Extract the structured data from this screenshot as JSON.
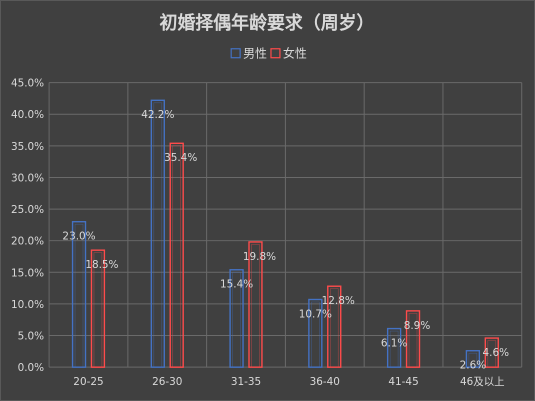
{
  "chart_data": {
    "type": "bar",
    "title": "初婚择偶年龄要求（周岁）",
    "categories": [
      "20-25",
      "26-30",
      "31-35",
      "36-40",
      "41-45",
      "46及以上"
    ],
    "series": [
      {
        "name": "男性",
        "values": [
          23.0,
          42.2,
          15.4,
          10.7,
          6.1,
          2.6
        ],
        "labels": [
          "23.0%",
          "42.2%",
          "15.4%",
          "10.7%",
          "6.1%",
          "2.6%"
        ],
        "color": "#4472c4"
      },
      {
        "name": "女性",
        "values": [
          18.5,
          35.4,
          19.8,
          12.8,
          8.9,
          4.6
        ],
        "labels": [
          "18.5%",
          "35.4%",
          "19.8%",
          "12.8%",
          "8.9%",
          "4.6%"
        ],
        "color": "#ff4b4b"
      }
    ],
    "yticks": [
      "0.0%",
      "5.0%",
      "10.0%",
      "15.0%",
      "20.0%",
      "25.0%",
      "30.0%",
      "35.0%",
      "40.0%",
      "45.0%"
    ],
    "ylim": [
      0,
      45
    ],
    "xlabel": "",
    "ylabel": "",
    "legend_position": "top",
    "grid": true,
    "style": "outlined bars",
    "background": "#404040"
  }
}
